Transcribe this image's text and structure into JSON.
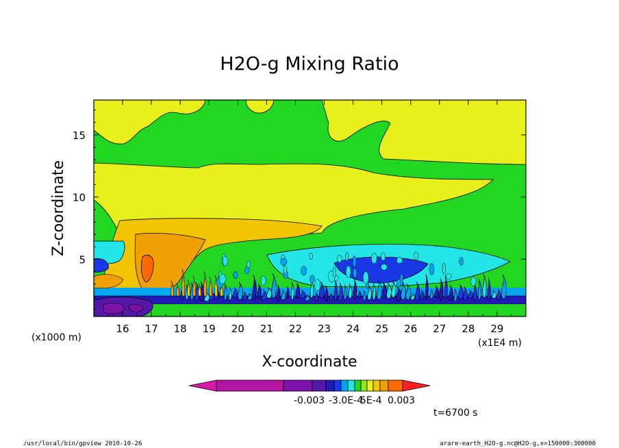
{
  "chart_data": {
    "type": "heatmap",
    "subtype": "filled-contour",
    "title": "H2O-g Mixing Ratio",
    "xlabel": "X-coordinate",
    "ylabel": "Z-coordinate",
    "x_unit_label": "(x1E4 m)",
    "y_unit_label": "(x1000 m)",
    "x_ticks": [
      "16",
      "17",
      "18",
      "19",
      "20",
      "21",
      "22",
      "23",
      "24",
      "25",
      "26",
      "27",
      "28",
      "29"
    ],
    "y_ticks": [
      "5",
      "10",
      "15"
    ],
    "x_tick_values": [
      16,
      17,
      18,
      19,
      20,
      21,
      22,
      23,
      24,
      25,
      26,
      27,
      28,
      29
    ],
    "y_tick_values": [
      5,
      10,
      15
    ],
    "xlim": [
      15,
      30
    ],
    "ylim": [
      0.4,
      17.8
    ],
    "colorbar": {
      "colors": [
        "#d61ba8",
        "#b515a3",
        "#7d12a8",
        "#5318a8",
        "#2219b9",
        "#1838e8",
        "#00a6f0",
        "#22e6e6",
        "#22d622",
        "#93e61a",
        "#e8ef1a",
        "#f4c400",
        "#f0a000",
        "#ff6a00",
        "#ff1f1f"
      ],
      "labels": [
        "-0.003",
        "-3.0E-4",
        "5E-4",
        "0.003"
      ]
    },
    "time_label": "t=6700 s",
    "regions": [
      {
        "name": "upper yellow plume left",
        "level": "yellow"
      },
      {
        "name": "mid-level yellow band",
        "level": "yellow"
      },
      {
        "name": "orange core",
        "level": "orange"
      },
      {
        "name": "cyan anomaly",
        "level": "cyan"
      },
      {
        "name": "blue anomaly",
        "level": "blue"
      },
      {
        "name": "low-level violet band",
        "level": "violet"
      }
    ]
  },
  "footer": {
    "left": "/usr/local/bin/gpview  2010-10-26",
    "right": "arare-earth_H2O-g.nc@H2O-g,x=150000:300000"
  }
}
